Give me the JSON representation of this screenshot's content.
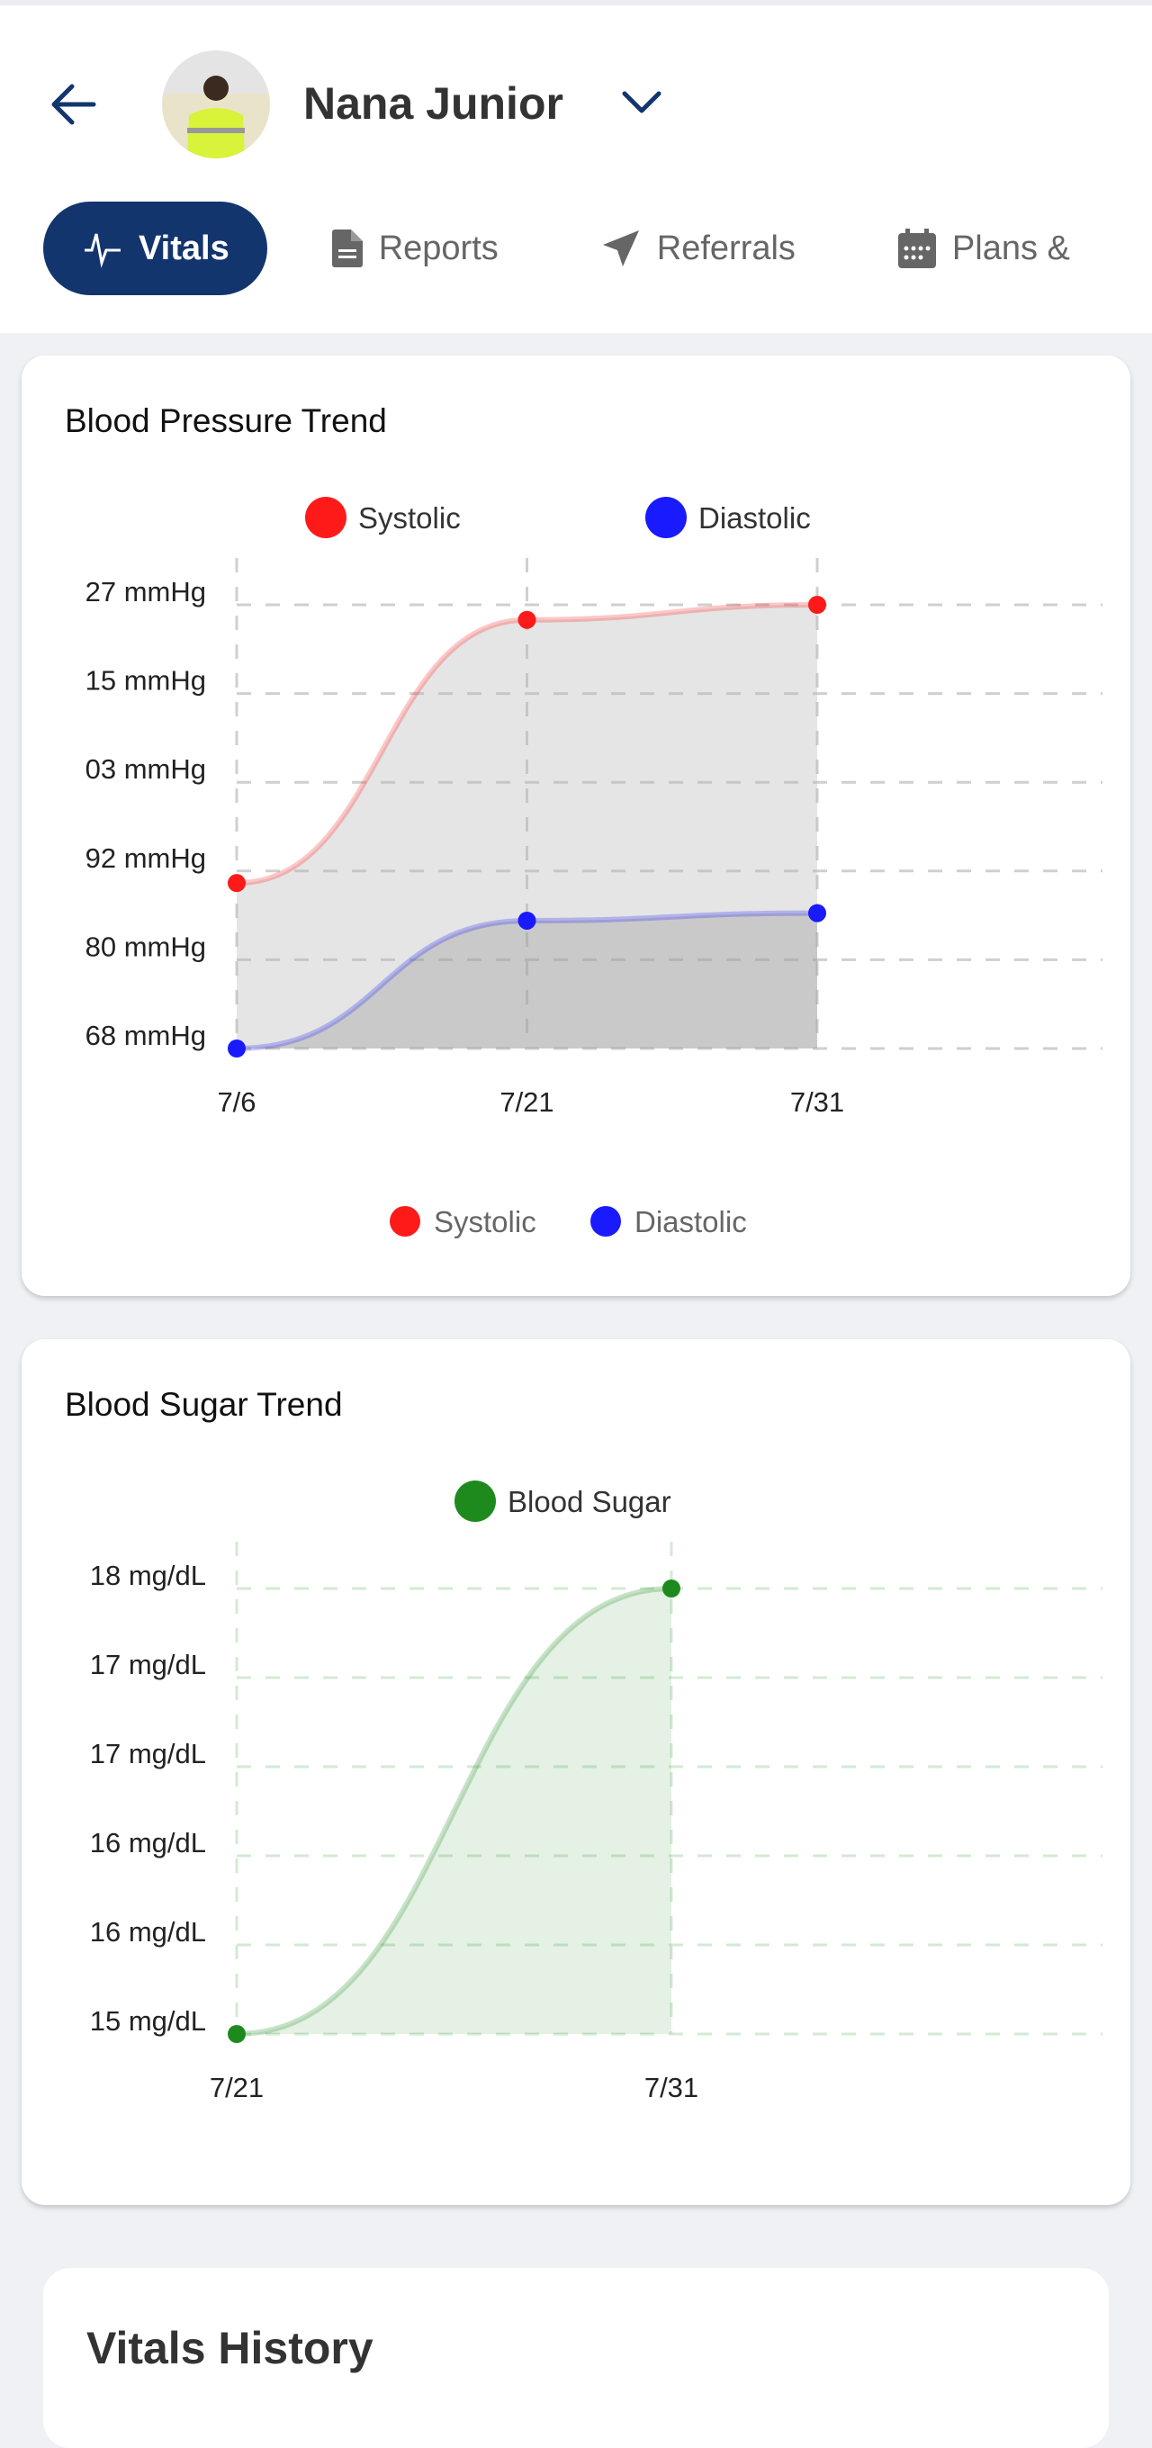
{
  "header": {
    "patient_name": "Nana Junior"
  },
  "tabs": [
    {
      "label": "Vitals",
      "icon": "pulse-icon",
      "active": true
    },
    {
      "label": "Reports",
      "icon": "document-icon"
    },
    {
      "label": "Referrals",
      "icon": "paper-plane-icon"
    },
    {
      "label": "Plans &",
      "icon": "calendar-icon"
    }
  ],
  "colors": {
    "accent": "#13356e",
    "systolic": "#ff1a1a",
    "diastolic": "#1a1aff",
    "blood_sugar": "#1e8a1e"
  },
  "chart_data": [
    {
      "type": "area",
      "title": "Blood Pressure Trend",
      "categories": [
        "7/6",
        "7/21",
        "7/31"
      ],
      "series": [
        {
          "name": "Systolic",
          "values": [
            90,
            125,
            127
          ],
          "color": "#ff1a1a"
        },
        {
          "name": "Diastolic",
          "values": [
            68,
            85,
            86
          ],
          "color": "#1a1aff"
        }
      ],
      "ytick_labels": [
        "68 mmHg",
        "80 mmHg",
        "92 mmHg",
        "03 mmHg",
        "15 mmHg",
        "27 mmHg"
      ],
      "ylim": [
        68,
        127
      ],
      "grid": true,
      "legend": [
        "top",
        "bottom"
      ]
    },
    {
      "type": "area",
      "title": "Blood Sugar Trend",
      "categories": [
        "7/21",
        "7/31"
      ],
      "series": [
        {
          "name": "Blood Sugar",
          "values": [
            15.3,
            17.8
          ],
          "color": "#1e8a1e"
        }
      ],
      "ytick_labels": [
        "15 mg/dL",
        "16 mg/dL",
        "16 mg/dL",
        "17 mg/dL",
        "17 mg/dL",
        "18 mg/dL"
      ],
      "ylim": [
        15.3,
        17.8
      ],
      "grid": true,
      "legend": "top"
    }
  ],
  "history": {
    "title": "Vitals History"
  }
}
